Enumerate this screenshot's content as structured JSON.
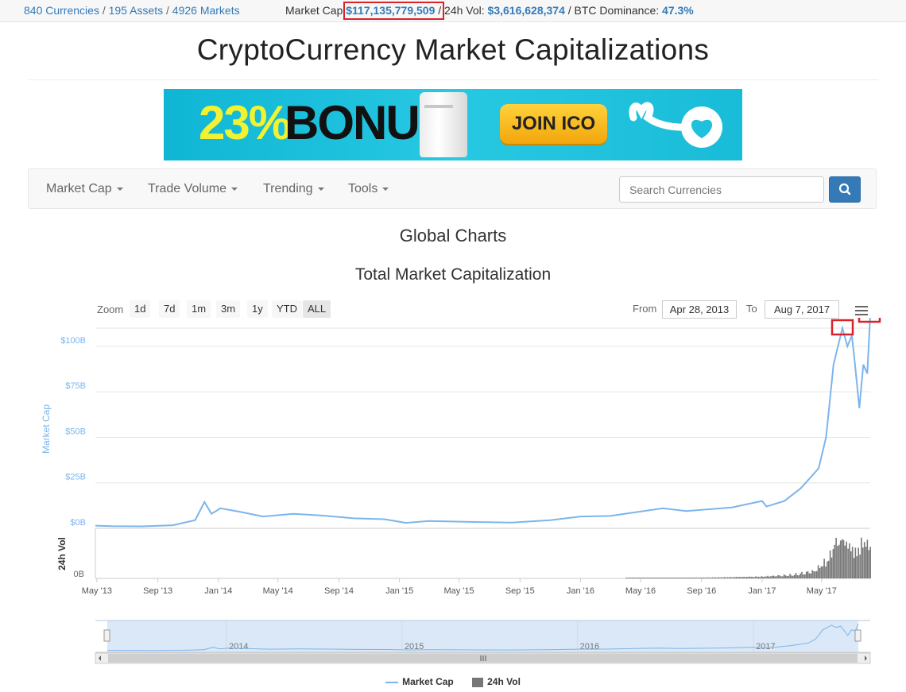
{
  "topbar": {
    "currencies": "840 Currencies",
    "assets": "195 Assets",
    "markets": "4926 Markets",
    "sep": "/",
    "market_cap_label": "Market Cap:",
    "market_cap_value": "$117,135,779,509",
    "vol_label": "24h Vol:",
    "vol_value": "$3,616,628,374",
    "btc_label": "BTC Dominance:",
    "btc_value": "47.3%"
  },
  "site_title": "CryptoCurrency Market Capitalizations",
  "banner": {
    "bonus_pct": "23%",
    "bonus_word": "BONUS",
    "cta": "JOIN ICO",
    "colors": {
      "bg": "#1ec0dc",
      "pct": "#f2f232",
      "cta": "#f7b82a"
    }
  },
  "nav": {
    "items": [
      {
        "label": "Market Cap"
      },
      {
        "label": "Trade Volume"
      },
      {
        "label": "Trending"
      },
      {
        "label": "Tools"
      }
    ],
    "search_placeholder": "Search Currencies",
    "search_icon": "search-icon"
  },
  "page_heading": "Global Charts",
  "chart_title": "Total Market Capitalization",
  "range": {
    "zoom_label": "Zoom",
    "buttons": [
      "1d",
      "7d",
      "1m",
      "3m",
      "1y",
      "YTD",
      "ALL"
    ],
    "from_label": "From",
    "from_value": "Apr 28, 2013",
    "to_label": "To",
    "to_value": "Aug 7, 2017",
    "menu_icon": "hamburger-menu-icon"
  },
  "chart_data": {
    "type": "line",
    "title": "Total Market Capitalization",
    "xlim": [
      "2013-04-28",
      "2017-08-07"
    ],
    "x_ticks": [
      "May '13",
      "Sep '13",
      "Jan '14",
      "May '14",
      "Sep '14",
      "Jan '15",
      "May '15",
      "Sep '15",
      "Jan '16",
      "May '16",
      "Sep '16",
      "Jan '17",
      "May '17"
    ],
    "navigator_ticks": [
      "2014",
      "2015",
      "2016",
      "2017"
    ],
    "grid": true,
    "legend_position": "bottom-center",
    "colors": {
      "market_cap": "#7cb5ec",
      "volume": "#777777",
      "highlight": "#d9232b"
    },
    "panes": [
      {
        "series": "Market Cap",
        "ylabel": "Market Cap",
        "ylim": [
          0,
          110
        ],
        "y_ticks": [
          "$0B",
          "$25B",
          "$50B",
          "$75B",
          "$100B"
        ],
        "y_tick_values": [
          0,
          25,
          50,
          75,
          100
        ]
      },
      {
        "series": "24h Vol",
        "ylabel": "24h Vol",
        "y_ticks": [
          "0B"
        ]
      }
    ],
    "series": [
      {
        "name": "Market Cap",
        "unit": "billion USD",
        "points": [
          [
            "2013-04-28",
            1.5
          ],
          [
            "2013-06-01",
            1.2
          ],
          [
            "2013-08-01",
            1.1
          ],
          [
            "2013-10-01",
            1.7
          ],
          [
            "2013-11-15",
            4.5
          ],
          [
            "2013-12-04",
            14.5
          ],
          [
            "2013-12-18",
            8
          ],
          [
            "2014-01-05",
            11
          ],
          [
            "2014-02-15",
            9
          ],
          [
            "2014-04-01",
            6.5
          ],
          [
            "2014-06-01",
            8
          ],
          [
            "2014-08-01",
            7
          ],
          [
            "2014-10-01",
            5.5
          ],
          [
            "2014-12-01",
            5
          ],
          [
            "2015-01-14",
            3
          ],
          [
            "2015-03-01",
            4
          ],
          [
            "2015-06-01",
            3.5
          ],
          [
            "2015-08-15",
            3.2
          ],
          [
            "2015-11-01",
            4.5
          ],
          [
            "2016-01-01",
            6.5
          ],
          [
            "2016-03-01",
            6.8
          ],
          [
            "2016-06-15",
            11
          ],
          [
            "2016-08-01",
            9.5
          ],
          [
            "2016-11-01",
            11.5
          ],
          [
            "2017-01-01",
            15
          ],
          [
            "2017-01-10",
            12
          ],
          [
            "2017-02-15",
            15
          ],
          [
            "2017-03-20",
            22
          ],
          [
            "2017-04-25",
            33
          ],
          [
            "2017-05-10",
            50
          ],
          [
            "2017-05-16",
            66
          ],
          [
            "2017-05-25",
            90
          ],
          [
            "2017-06-12",
            110
          ],
          [
            "2017-06-22",
            100
          ],
          [
            "2017-07-01",
            106
          ],
          [
            "2017-07-08",
            88
          ],
          [
            "2017-07-16",
            66
          ],
          [
            "2017-07-24",
            90
          ],
          [
            "2017-08-01",
            85
          ],
          [
            "2017-08-07",
            117
          ]
        ]
      },
      {
        "name": "24h Vol",
        "unit": "billion USD",
        "points": [
          [
            "2013-04-28",
            0
          ],
          [
            "2016-05-01",
            0.05
          ],
          [
            "2016-09-01",
            0.08
          ],
          [
            "2017-01-01",
            0.2
          ],
          [
            "2017-03-01",
            0.4
          ],
          [
            "2017-04-15",
            0.8
          ],
          [
            "2017-05-15",
            2.2
          ],
          [
            "2017-05-25",
            3.8
          ],
          [
            "2017-06-12",
            4.2
          ],
          [
            "2017-06-25",
            3.5
          ],
          [
            "2017-07-10",
            2.8
          ],
          [
            "2017-07-20",
            4.0
          ],
          [
            "2017-08-07",
            3.6
          ]
        ]
      }
    ],
    "annotations": [
      {
        "type": "highlight-box",
        "at": "2017-06-12"
      },
      {
        "type": "highlight-box",
        "at": "2017-08-07"
      }
    ]
  }
}
